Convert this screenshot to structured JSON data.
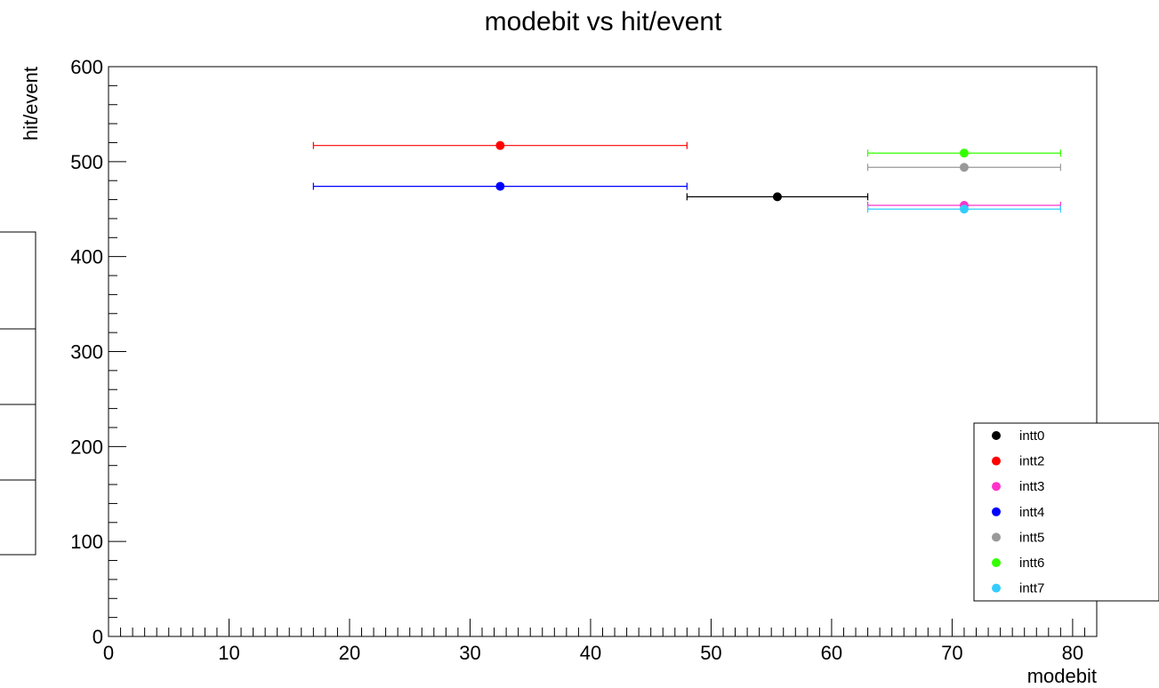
{
  "chart_data": {
    "type": "scatter",
    "title": "modebit vs hit/event",
    "xlabel": "modebit",
    "ylabel": "hit/event",
    "xlim": [
      0,
      82
    ],
    "ylim": [
      0,
      600
    ],
    "x_major_ticks": [
      0,
      10,
      20,
      30,
      40,
      50,
      60,
      70,
      80
    ],
    "y_major_ticks": [
      0,
      100,
      200,
      300,
      400,
      500,
      600
    ],
    "legend_position": "bottom-right",
    "series": [
      {
        "name": "intt0",
        "color": "#000000",
        "points": [
          {
            "x": 55.5,
            "y": 463,
            "xerr": 7.5
          }
        ]
      },
      {
        "name": "intt2",
        "color": "#ff0000",
        "points": [
          {
            "x": 32.5,
            "y": 517,
            "xerr": 15.5
          }
        ]
      },
      {
        "name": "intt3",
        "color": "#ff33cc",
        "points": [
          {
            "x": 71.0,
            "y": 454,
            "xerr": 8.0
          }
        ]
      },
      {
        "name": "intt4",
        "color": "#0000ff",
        "points": [
          {
            "x": 32.5,
            "y": 474,
            "xerr": 15.5
          }
        ]
      },
      {
        "name": "intt5",
        "color": "#999999",
        "points": [
          {
            "x": 71.0,
            "y": 494,
            "xerr": 8.0
          }
        ]
      },
      {
        "name": "intt6",
        "color": "#33ff00",
        "points": [
          {
            "x": 71.0,
            "y": 509,
            "xerr": 8.0
          }
        ]
      },
      {
        "name": "intt7",
        "color": "#33ccff",
        "points": [
          {
            "x": 71.0,
            "y": 450,
            "xerr": 8.0
          }
        ]
      }
    ]
  }
}
